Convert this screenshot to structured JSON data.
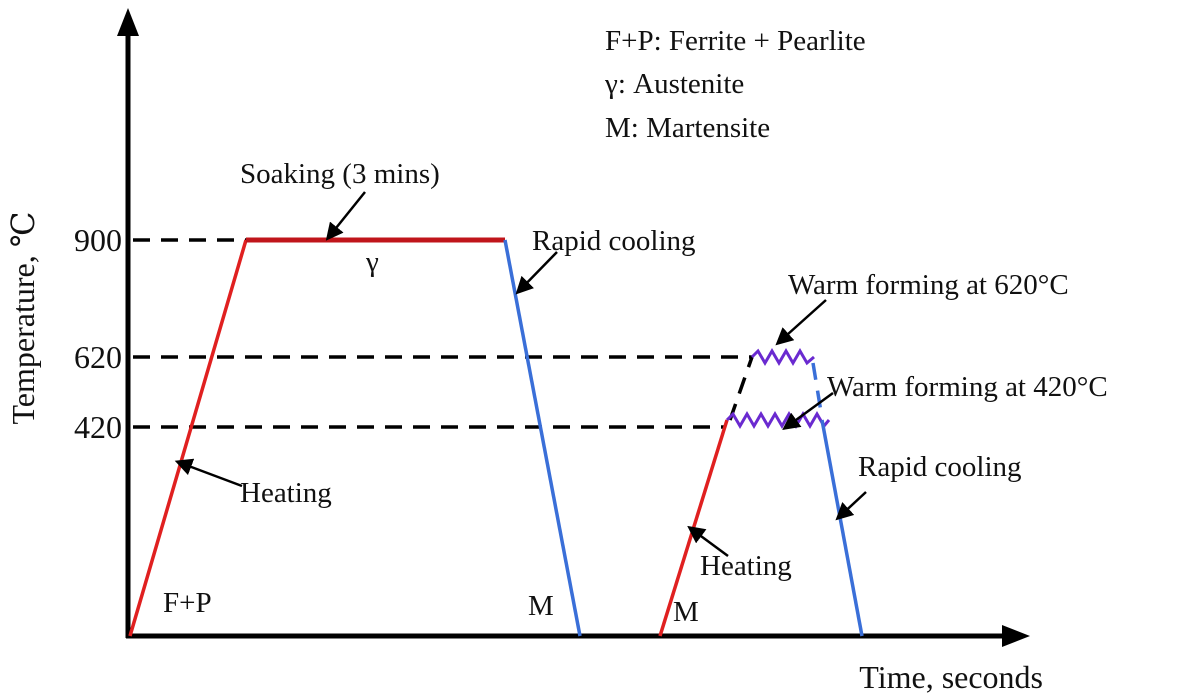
{
  "colors": {
    "axis": "#000000",
    "heating": "#e02020",
    "soak": "#c0151b",
    "cooling": "#3a6fd8",
    "forming": "#6a2ad0",
    "guide": "#000000"
  },
  "axes": {
    "y_title": "Temperature, ℃",
    "x_title": "Time, seconds",
    "y_ticks": [
      "900",
      "620",
      "420"
    ]
  },
  "legend": [
    "F+P: Ferrite + Pearlite",
    "γ: Austenite",
    "M: Martensite"
  ],
  "annotations": {
    "soaking": "Soaking (3 mins)",
    "gamma": "γ",
    "rapid_cooling_1": "Rapid cooling",
    "heating_1": "Heating",
    "fp": "F+P",
    "m_1": "M",
    "warm_620": "Warm forming at 620°C",
    "warm_420": "Warm forming at 420°C",
    "rapid_cooling_2": "Rapid cooling",
    "heating_2": "Heating",
    "m_2": "M"
  },
  "icons": [
    "arrow-icon"
  ]
}
